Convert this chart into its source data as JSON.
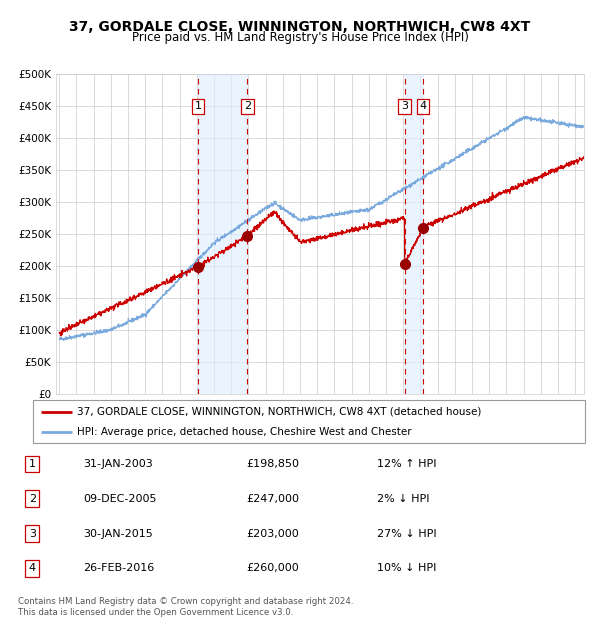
{
  "title": "37, GORDALE CLOSE, WINNINGTON, NORTHWICH, CW8 4XT",
  "subtitle": "Price paid vs. HM Land Registry's House Price Index (HPI)",
  "title_fontsize": 10,
  "subtitle_fontsize": 8.5,
  "ylabel_ticks": [
    "£0",
    "£50K",
    "£100K",
    "£150K",
    "£200K",
    "£250K",
    "£300K",
    "£350K",
    "£400K",
    "£450K",
    "£500K"
  ],
  "ytick_values": [
    0,
    50000,
    100000,
    150000,
    200000,
    250000,
    300000,
    350000,
    400000,
    450000,
    500000
  ],
  "ylim": [
    0,
    500000
  ],
  "sale_dates_num": [
    2003.08,
    2005.93,
    2015.08,
    2016.15
  ],
  "sale_prices": [
    198850,
    247000,
    203000,
    260000
  ],
  "sale_labels": [
    "1",
    "2",
    "3",
    "4"
  ],
  "hpi_color": "#7aaadd",
  "property_color": "#cc0000",
  "sale_marker_color": "#990000",
  "dashed_line_color": "#cc0000",
  "shade_color": "#ddeeff",
  "grid_color": "#cccccc",
  "background_color": "#ffffff",
  "legend_property_label": "37, GORDALE CLOSE, WINNINGTON, NORTHWICH, CW8 4XT (detached house)",
  "legend_hpi_label": "HPI: Average price, detached house, Cheshire West and Chester",
  "table_rows": [
    {
      "num": "1",
      "date": "31-JAN-2003",
      "price": "£198,850",
      "note": "12% ↑ HPI"
    },
    {
      "num": "2",
      "date": "09-DEC-2005",
      "price": "£247,000",
      "note": "2% ↓ HPI"
    },
    {
      "num": "3",
      "date": "30-JAN-2015",
      "price": "£203,000",
      "note": "27% ↓ HPI"
    },
    {
      "num": "4",
      "date": "26-FEB-2016",
      "price": "£260,000",
      "note": "10% ↓ HPI"
    }
  ],
  "footer": "Contains HM Land Registry data © Crown copyright and database right 2024.\nThis data is licensed under the Open Government Licence v3.0.",
  "xmin": 1995,
  "xmax": 2025.5
}
